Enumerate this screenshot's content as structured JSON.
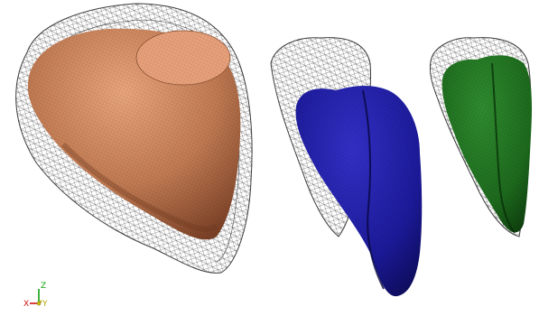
{
  "scene": {
    "background": "#ffffff",
    "meshes": [
      {
        "name": "brown-mesh",
        "color": "#c8875e",
        "shade": "#8a4f31",
        "light": "#e9a57c",
        "wire": "#3c3c3c"
      },
      {
        "name": "blue-mesh",
        "color": "#1c1a9a",
        "shade": "#0b0a55",
        "light": "#3431c8",
        "wire": "#3c3c3c"
      },
      {
        "name": "green-mesh",
        "color": "#1d6a1d",
        "shade": "#0d3a0d",
        "light": "#2f8c2f",
        "wire": "#3c3c3c"
      }
    ]
  },
  "axes": {
    "labels": {
      "x": "X",
      "y": "Y",
      "z": "Z"
    },
    "colors": {
      "x": "#d01010",
      "y": "#b0a800",
      "z": "#10a010"
    }
  }
}
